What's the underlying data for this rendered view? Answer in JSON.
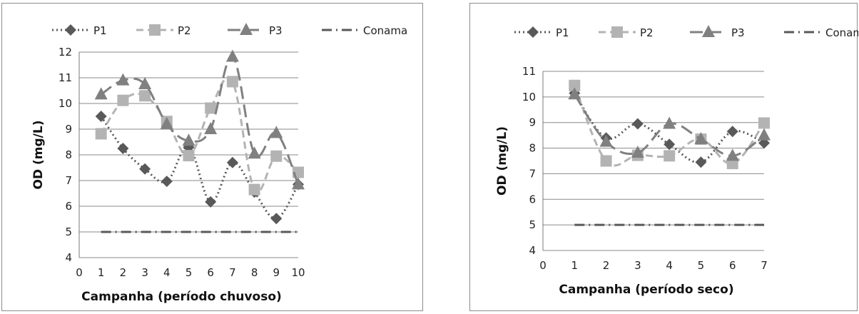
{
  "chart_data": [
    {
      "type": "line",
      "xlabel": "Campanha (período chuvoso)",
      "ylabel": "OD (mg/L)",
      "xlim": [
        0,
        10
      ],
      "ylim": [
        4,
        12
      ],
      "xticks": [
        0,
        1,
        2,
        3,
        4,
        5,
        6,
        7,
        8,
        9,
        10
      ],
      "yticks": [
        4,
        5,
        6,
        7,
        8,
        9,
        10,
        11,
        12
      ],
      "grid": "horizontal",
      "legend_position": "top",
      "series": [
        {
          "name": "P1",
          "color": "#595959",
          "marker": "diamond",
          "dash": "2,4",
          "x": [
            1,
            2,
            3,
            4,
            5,
            6,
            7,
            8,
            9,
            10
          ],
          "y": [
            9.5,
            8.25,
            7.45,
            6.97,
            8.3,
            6.17,
            7.7,
            6.55,
            5.52,
            6.85
          ]
        },
        {
          "name": "P2",
          "color": "#b3b3b3",
          "marker": "square",
          "dash": "10,6",
          "x": [
            1,
            2,
            3,
            4,
            5,
            6,
            7,
            8,
            9,
            10
          ],
          "y": [
            8.82,
            10.12,
            10.3,
            9.3,
            7.97,
            9.82,
            10.85,
            6.65,
            7.95,
            7.32
          ]
        },
        {
          "name": "P3",
          "color": "#808080",
          "marker": "triangle",
          "dash": "18,8",
          "x": [
            1,
            2,
            3,
            4,
            5,
            6,
            7,
            8,
            9,
            10
          ],
          "y": [
            10.35,
            10.9,
            10.75,
            9.2,
            8.55,
            9.0,
            11.82,
            8.05,
            8.85,
            6.85
          ]
        },
        {
          "name": "Conama",
          "color": "#595959",
          "marker": "none",
          "dash": "14,6,2,6",
          "x": [
            1,
            2,
            3,
            4,
            5,
            6,
            7,
            8,
            9,
            10
          ],
          "y": [
            5,
            5,
            5,
            5,
            5,
            5,
            5,
            5,
            5,
            5
          ]
        }
      ]
    },
    {
      "type": "line",
      "xlabel": "Campanha (período seco)",
      "ylabel": "OD (mg/L)",
      "xlim": [
        0,
        7
      ],
      "ylim": [
        4,
        11
      ],
      "xticks": [
        0,
        1,
        2,
        3,
        4,
        5,
        6,
        7
      ],
      "yticks": [
        4,
        5,
        6,
        7,
        8,
        9,
        10,
        11
      ],
      "grid": "horizontal",
      "legend_position": "top",
      "series": [
        {
          "name": "P1",
          "color": "#595959",
          "marker": "diamond",
          "dash": "2,4",
          "x": [
            1,
            2,
            3,
            4,
            5,
            6,
            7
          ],
          "y": [
            10.15,
            8.4,
            8.95,
            8.15,
            7.45,
            8.65,
            8.2
          ]
        },
        {
          "name": "P2",
          "color": "#b3b3b3",
          "marker": "square",
          "dash": "10,6",
          "x": [
            1,
            2,
            3,
            4,
            5,
            6,
            7
          ],
          "y": [
            10.45,
            7.5,
            7.72,
            7.7,
            8.35,
            7.4,
            8.98
          ]
        },
        {
          "name": "P3",
          "color": "#808080",
          "marker": "triangle",
          "dash": "18,8",
          "x": [
            1,
            2,
            3,
            4,
            5,
            6,
            7
          ],
          "y": [
            10.1,
            8.25,
            7.82,
            8.95,
            8.35,
            7.7,
            8.5
          ]
        },
        {
          "name": "Conama",
          "color": "#595959",
          "marker": "none",
          "dash": "14,6,2,6",
          "x": [
            1,
            2,
            3,
            4,
            5,
            6,
            7
          ],
          "y": [
            5,
            5,
            5,
            5,
            5,
            5,
            5
          ]
        }
      ]
    }
  ]
}
